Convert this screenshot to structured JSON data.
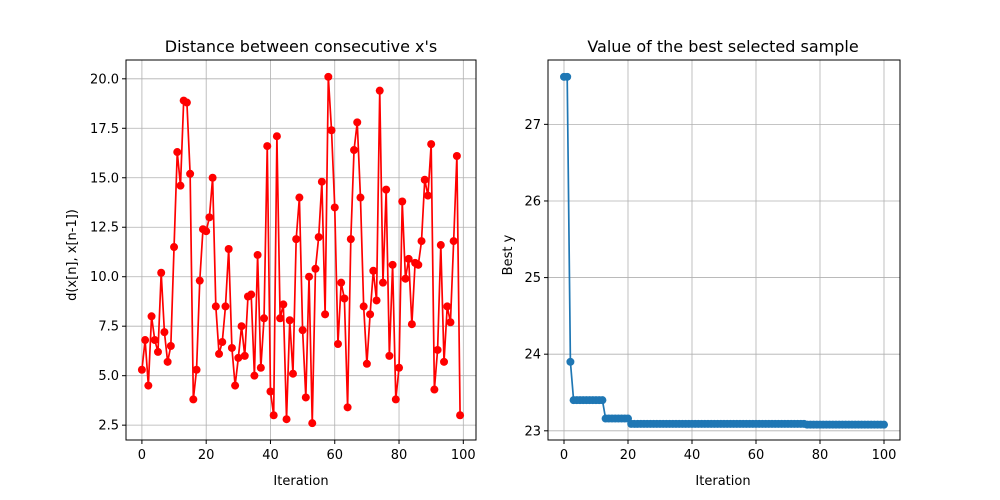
{
  "chart_data": [
    {
      "type": "line",
      "title": "Distance between consecutive x's",
      "xlabel": "Iteration",
      "ylabel": "d(x[n], x[n-1])",
      "xlim": [
        -4.95,
        103.95
      ],
      "ylim": [
        1.75,
        20.95
      ],
      "xticks": [
        0,
        20,
        40,
        60,
        80,
        100
      ],
      "yticks": [
        2.5,
        5.0,
        7.5,
        10.0,
        12.5,
        15.0,
        17.5,
        20.0
      ],
      "ytick_labels": [
        "2.5",
        "5.0",
        "7.5",
        "10.0",
        "12.5",
        "15.0",
        "17.5",
        "20.0"
      ],
      "grid": true,
      "color": "#ff0000",
      "marker": "circle",
      "x": [
        0,
        1,
        2,
        3,
        4,
        5,
        6,
        7,
        8,
        9,
        10,
        11,
        12,
        13,
        14,
        15,
        16,
        17,
        18,
        19,
        20,
        21,
        22,
        23,
        24,
        25,
        26,
        27,
        28,
        29,
        30,
        31,
        32,
        33,
        34,
        35,
        36,
        37,
        38,
        39,
        40,
        41,
        42,
        43,
        44,
        45,
        46,
        47,
        48,
        49,
        50,
        51,
        52,
        53,
        54,
        55,
        56,
        57,
        58,
        59,
        60,
        61,
        62,
        63,
        64,
        65,
        66,
        67,
        68,
        69,
        70,
        71,
        72,
        73,
        74,
        75,
        76,
        77,
        78,
        79,
        80,
        81,
        82,
        83,
        84,
        85,
        86,
        87,
        88,
        89,
        90,
        91,
        92,
        93,
        94,
        95,
        96,
        97,
        98,
        99
      ],
      "y": [
        5.3,
        6.8,
        4.5,
        8.0,
        6.8,
        6.2,
        10.2,
        7.2,
        5.7,
        6.5,
        11.5,
        16.3,
        14.6,
        18.9,
        18.8,
        15.2,
        3.8,
        5.3,
        9.8,
        12.4,
        12.3,
        13.0,
        15.0,
        8.5,
        6.1,
        6.7,
        8.5,
        11.4,
        6.4,
        4.5,
        5.9,
        7.5,
        6.0,
        9.0,
        9.1,
        5.0,
        11.1,
        5.4,
        7.9,
        16.6,
        4.2,
        3.0,
        17.1,
        7.9,
        8.6,
        2.8,
        7.8,
        5.1,
        11.9,
        14.0,
        7.3,
        3.9,
        10.0,
        2.6,
        10.4,
        12.0,
        14.8,
        8.1,
        20.1,
        17.4,
        13.5,
        6.6,
        9.7,
        8.9,
        3.4,
        11.9,
        16.4,
        17.8,
        14.0,
        8.5,
        5.6,
        8.1,
        10.3,
        8.8,
        19.4,
        9.7,
        14.4,
        6.0,
        10.6,
        3.8,
        5.4,
        13.8,
        9.9,
        10.9,
        7.6,
        10.7,
        10.6,
        11.8,
        14.9,
        14.1,
        16.7,
        4.3,
        6.3,
        11.6,
        5.7,
        8.5,
        7.7,
        11.8,
        16.1,
        3.0
      ]
    },
    {
      "type": "line",
      "title": "Value of the best selected sample",
      "xlabel": "Iteration",
      "ylabel": "Best y",
      "xlim": [
        -5.0,
        105.0
      ],
      "ylim": [
        22.88,
        27.84
      ],
      "xticks": [
        0,
        20,
        40,
        60,
        80,
        100
      ],
      "yticks": [
        23,
        24,
        25,
        26,
        27
      ],
      "ytick_labels": [
        "23",
        "24",
        "25",
        "26",
        "27"
      ],
      "grid": true,
      "color": "#1f77b4",
      "marker": "circle",
      "x": [
        0,
        1,
        2,
        3,
        4,
        5,
        6,
        7,
        8,
        9,
        10,
        11,
        12,
        13,
        14,
        15,
        16,
        17,
        18,
        19,
        20,
        21,
        22,
        23,
        24,
        25,
        26,
        27,
        28,
        29,
        30,
        31,
        32,
        33,
        34,
        35,
        36,
        37,
        38,
        39,
        40,
        41,
        42,
        43,
        44,
        45,
        46,
        47,
        48,
        49,
        50,
        51,
        52,
        53,
        54,
        55,
        56,
        57,
        58,
        59,
        60,
        61,
        62,
        63,
        64,
        65,
        66,
        67,
        68,
        69,
        70,
        71,
        72,
        73,
        74,
        75,
        76,
        77,
        78,
        79,
        80,
        81,
        82,
        83,
        84,
        85,
        86,
        87,
        88,
        89,
        90,
        91,
        92,
        93,
        94,
        95,
        96,
        97,
        98,
        99,
        100
      ],
      "y": [
        27.62,
        27.62,
        23.9,
        23.4,
        23.4,
        23.4,
        23.4,
        23.4,
        23.4,
        23.4,
        23.4,
        23.4,
        23.4,
        23.16,
        23.16,
        23.16,
        23.16,
        23.16,
        23.16,
        23.16,
        23.16,
        23.09,
        23.09,
        23.09,
        23.09,
        23.09,
        23.09,
        23.09,
        23.09,
        23.09,
        23.09,
        23.09,
        23.09,
        23.09,
        23.09,
        23.09,
        23.09,
        23.09,
        23.09,
        23.09,
        23.09,
        23.09,
        23.09,
        23.09,
        23.09,
        23.09,
        23.09,
        23.09,
        23.09,
        23.09,
        23.09,
        23.09,
        23.09,
        23.09,
        23.09,
        23.09,
        23.09,
        23.09,
        23.09,
        23.09,
        23.09,
        23.09,
        23.09,
        23.09,
        23.09,
        23.09,
        23.09,
        23.09,
        23.09,
        23.09,
        23.09,
        23.09,
        23.09,
        23.09,
        23.09,
        23.09,
        23.08,
        23.08,
        23.08,
        23.08,
        23.08,
        23.08,
        23.08,
        23.08,
        23.08,
        23.08,
        23.08,
        23.08,
        23.08,
        23.08,
        23.08,
        23.08,
        23.08,
        23.08,
        23.08,
        23.08,
        23.08,
        23.08,
        23.08,
        23.08,
        23.08
      ]
    }
  ]
}
